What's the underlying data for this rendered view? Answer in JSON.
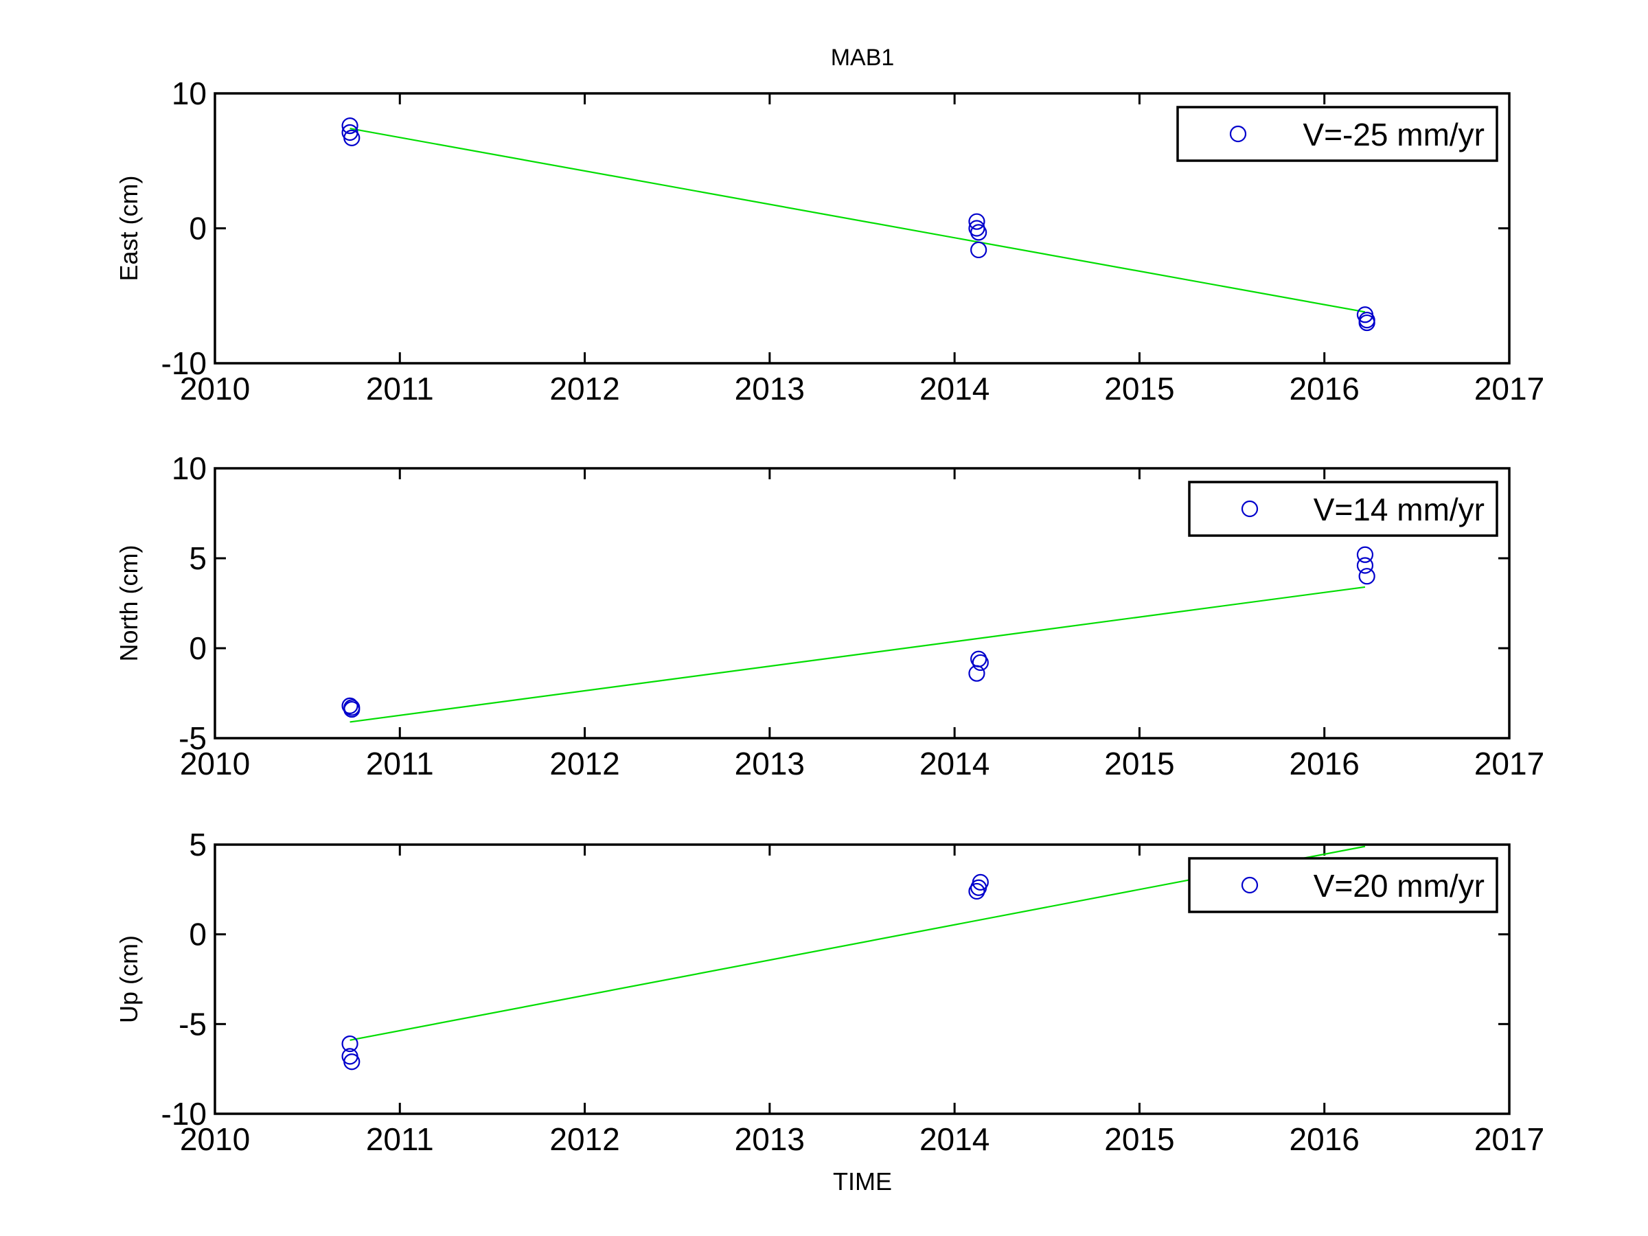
{
  "figure": {
    "title": "MAB1",
    "xlabel": "TIME"
  },
  "chart_data": [
    {
      "type": "scatter",
      "title": "MAB1",
      "xlabel": "",
      "ylabel": "East (cm)",
      "xlim": [
        2010,
        2017
      ],
      "ylim": [
        -10,
        10
      ],
      "xticks": [
        "2010",
        "2011",
        "2012",
        "2013",
        "2014",
        "2015",
        "2016",
        "2017"
      ],
      "yticks": [
        "-10",
        "0",
        "10"
      ],
      "grid": false,
      "legend": {
        "position": "top-right",
        "label": "V=-25 mm/yr"
      },
      "series": [
        {
          "name": "V=-25 mm/yr",
          "kind": "points",
          "color": "#0000cc",
          "points": [
            [
              2010.73,
              7.6
            ],
            [
              2010.73,
              7.1
            ],
            [
              2010.74,
              6.7
            ],
            [
              2014.12,
              0.5
            ],
            [
              2014.12,
              0.0
            ],
            [
              2014.13,
              -0.3
            ],
            [
              2014.13,
              -1.6
            ],
            [
              2016.22,
              -6.4
            ],
            [
              2016.23,
              -6.8
            ],
            [
              2016.23,
              -7.0
            ]
          ]
        },
        {
          "kind": "fit",
          "color": "#00dd00",
          "points": [
            [
              2010.73,
              7.4
            ],
            [
              2016.22,
              -6.2
            ]
          ]
        }
      ]
    },
    {
      "type": "scatter",
      "xlabel": "",
      "ylabel": "North (cm)",
      "xlim": [
        2010,
        2017
      ],
      "ylim": [
        -5,
        10
      ],
      "xticks": [
        "2010",
        "2011",
        "2012",
        "2013",
        "2014",
        "2015",
        "2016",
        "2017"
      ],
      "yticks": [
        "-5",
        "0",
        "5",
        "10"
      ],
      "grid": false,
      "legend": {
        "position": "top-right",
        "label": "V=14 mm/yr"
      },
      "series": [
        {
          "name": "V=14 mm/yr",
          "kind": "points",
          "color": "#0000cc",
          "points": [
            [
              2010.73,
              -3.2
            ],
            [
              2010.74,
              -3.3
            ],
            [
              2010.74,
              -3.4
            ],
            [
              2014.13,
              -0.6
            ],
            [
              2014.14,
              -0.8
            ],
            [
              2014.12,
              -1.4
            ],
            [
              2016.22,
              5.2
            ],
            [
              2016.22,
              4.6
            ],
            [
              2016.23,
              4.0
            ]
          ]
        },
        {
          "kind": "fit",
          "color": "#00dd00",
          "points": [
            [
              2010.73,
              -4.1
            ],
            [
              2016.22,
              3.4
            ]
          ]
        }
      ]
    },
    {
      "type": "scatter",
      "xlabel": "TIME",
      "ylabel": "Up (cm)",
      "xlim": [
        2010,
        2017
      ],
      "ylim": [
        -10,
        5
      ],
      "xticks": [
        "2010",
        "2011",
        "2012",
        "2013",
        "2014",
        "2015",
        "2016",
        "2017"
      ],
      "yticks": [
        "-10",
        "-5",
        "0",
        "5"
      ],
      "grid": false,
      "legend": {
        "position": "top-right",
        "label": "V=20 mm/yr"
      },
      "series": [
        {
          "name": "V=20 mm/yr",
          "kind": "points",
          "color": "#0000cc",
          "points": [
            [
              2010.73,
              -6.1
            ],
            [
              2010.73,
              -6.8
            ],
            [
              2010.74,
              -7.1
            ],
            [
              2014.14,
              2.9
            ],
            [
              2014.13,
              2.6
            ],
            [
              2014.12,
              2.4
            ]
          ]
        },
        {
          "kind": "fit",
          "color": "#00dd00",
          "points": [
            [
              2010.73,
              -5.9
            ],
            [
              2016.22,
              4.9
            ]
          ]
        }
      ]
    }
  ]
}
